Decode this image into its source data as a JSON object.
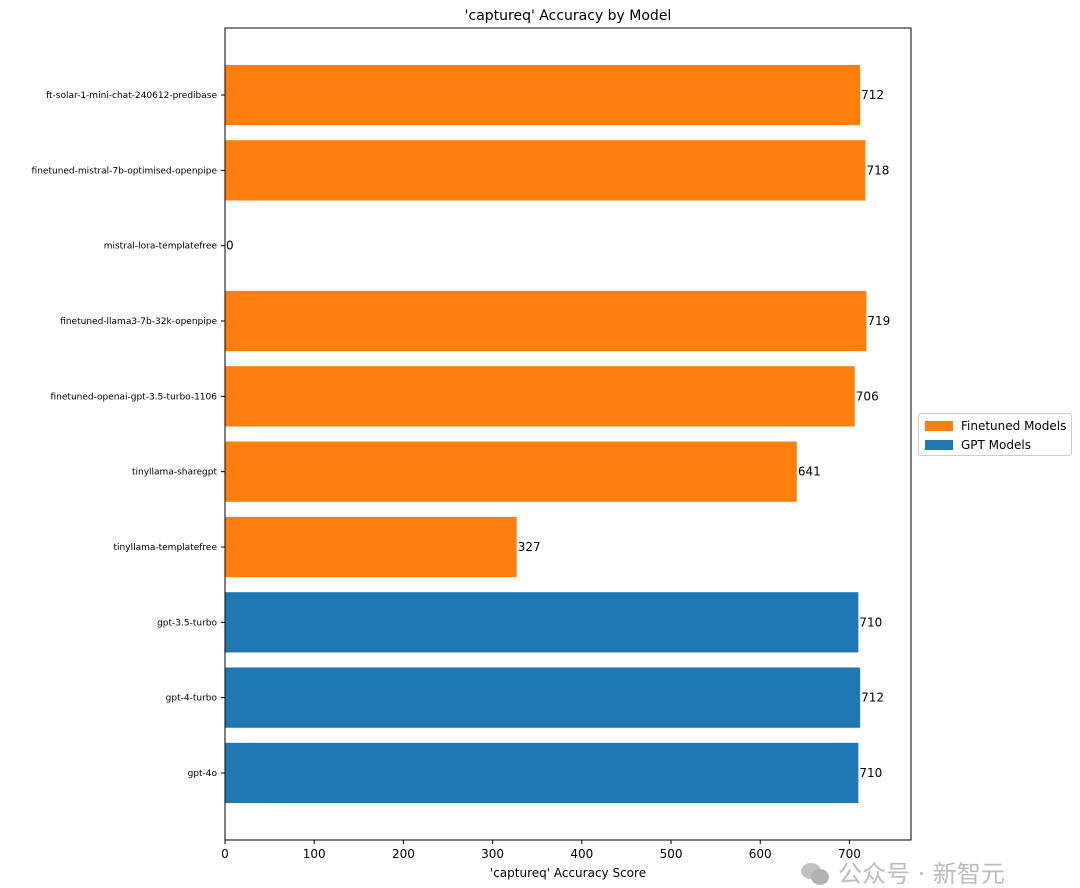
{
  "chart_data": {
    "type": "bar",
    "orientation": "horizontal",
    "title": "'captureq' Accuracy by Model",
    "xlabel": "'captureq' Accuracy Score",
    "ylabel": "",
    "xlim": [
      0,
      769
    ],
    "xticks": [
      0,
      100,
      200,
      300,
      400,
      500,
      600,
      700
    ],
    "categories": [
      "ft-solar-1-mini-chat-240612-predibase",
      "finetuned-mistral-7b-optimised-openpipe",
      "mistral-lora-templatefree",
      "finetuned-llama3-7b-32k-openpipe",
      "finetuned-openai-gpt-3.5-turbo-1106",
      "tinyllama-sharegpt",
      "tinyllama-templatefree",
      "gpt-3.5-turbo",
      "gpt-4-turbo",
      "gpt-4o"
    ],
    "values": [
      712,
      718,
      0,
      719,
      706,
      641,
      327,
      710,
      712,
      710
    ],
    "groups": [
      "Finetuned Models",
      "Finetuned Models",
      "Finetuned Models",
      "Finetuned Models",
      "Finetuned Models",
      "Finetuned Models",
      "Finetuned Models",
      "GPT Models",
      "GPT Models",
      "GPT Models"
    ],
    "legend": [
      {
        "name": "Finetuned Models",
        "color": "#ff7f0e"
      },
      {
        "name": "GPT Models",
        "color": "#1f77b4"
      }
    ],
    "legend_position": "right-center",
    "grid": false
  },
  "watermark": {
    "text": "公众号 · 新智元",
    "icon": "wechat-icon"
  }
}
